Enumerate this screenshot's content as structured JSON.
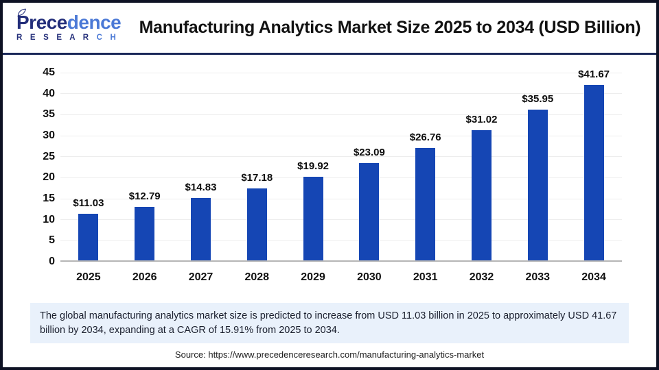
{
  "header": {
    "title": "Manufacturing Analytics Market Size 2025 to 2034 (USD Billion)",
    "logo": {
      "name_part1": "Prece",
      "name_part2": "dence",
      "research_part1": "R E S E A R ",
      "research_part2": "C H"
    }
  },
  "chart_data": {
    "type": "bar",
    "categories": [
      "2025",
      "2026",
      "2027",
      "2028",
      "2029",
      "2030",
      "2031",
      "2032",
      "2033",
      "2034"
    ],
    "values": [
      11.03,
      12.79,
      14.83,
      17.18,
      19.92,
      23.09,
      26.76,
      31.02,
      35.95,
      41.67
    ],
    "data_labels": [
      "$11.03",
      "$12.79",
      "$14.83",
      "$17.18",
      "$19.92",
      "$23.09",
      "$26.76",
      "$31.02",
      "$35.95",
      "$41.67"
    ],
    "title": "Manufacturing Analytics Market Size 2025 to 2034 (USD Billion)",
    "xlabel": "",
    "ylabel": "",
    "ylim": [
      0,
      45
    ],
    "yticks": [
      0,
      5,
      10,
      15,
      20,
      25,
      30,
      35,
      40,
      45
    ],
    "grid": true,
    "legend": "none",
    "bar_color": "#1546b4"
  },
  "note": {
    "text": "The global manufacturing analytics market size is predicted to increase from USD 11.03 billion in 2025 to approximately USD 41.67 billion by 2034, expanding at a CAGR of 15.91% from 2025 to 2034."
  },
  "source": {
    "text": "Source: https://www.precedenceresearch.com/manufacturing-analytics-market"
  },
  "colors": {
    "bar": "#1546b4",
    "note_bg": "#e9f1fb",
    "header_rule": "#1b2859",
    "outer_border": "#0e1224",
    "logo_navy": "#232e7a",
    "logo_blue": "#4b79d6",
    "gridline": "#ededed",
    "axis_line": "#b5b5b5"
  }
}
